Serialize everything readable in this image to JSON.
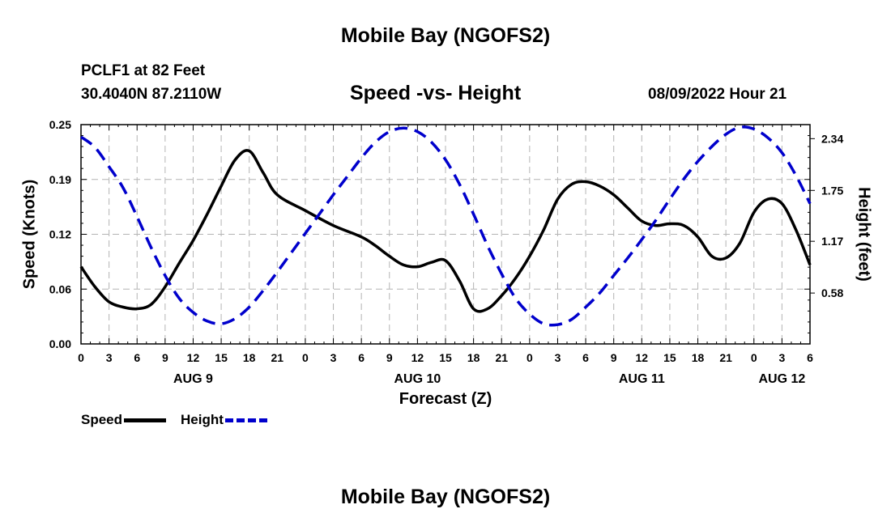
{
  "page": {
    "title": "Mobile Bay (NGOFS2)",
    "footer_title": "Mobile Bay (NGOFS2)",
    "station": "PCLF1 at 82 Feet",
    "coordinates": "30.4040N  87.2110W",
    "subtitle": "Speed -vs- Height",
    "timestamp": "08/09/2022 Hour 21"
  },
  "legend": {
    "speed_label": "Speed",
    "height_label": "Height"
  },
  "chart_data": {
    "type": "line",
    "title": "Speed -vs- Height",
    "xlabel": "Forecast (Z)",
    "ylabel": "Speed (Knots)",
    "y2label": "Height (feet)",
    "xlim": [
      0,
      78
    ],
    "ylim": [
      0,
      0.25
    ],
    "y2lim": [
      0.0,
      2.5
    ],
    "x_tick_step_hours": 3,
    "x_tick_labels": [
      "0",
      "3",
      "6",
      "9",
      "12",
      "15",
      "18",
      "21",
      "0",
      "3",
      "6",
      "9",
      "12",
      "15",
      "18",
      "21",
      "0",
      "3",
      "6",
      "9",
      "12",
      "15",
      "18",
      "21",
      "0",
      "3",
      "6"
    ],
    "x_date_labels": [
      {
        "label": "AUG 9",
        "x": 12
      },
      {
        "label": "AUG 10",
        "x": 36
      },
      {
        "label": "AUG 11",
        "x": 60
      },
      {
        "label": "AUG 12",
        "x": 75
      }
    ],
    "y_ticks": [
      "0.00",
      "0.06",
      "0.12",
      "0.19",
      "0.25"
    ],
    "y2_ticks": [
      "0.58",
      "1.17",
      "1.75",
      "2.34"
    ],
    "grid": true,
    "legend_position": "bottom-left",
    "colors": {
      "speed": "#000000",
      "height": "#0000cc",
      "grid": "#b4b4b4"
    },
    "series": [
      {
        "name": "Speed",
        "axis": "left",
        "style": "solid",
        "x": [
          0,
          1.5,
          3,
          4.5,
          6,
          7.5,
          9,
          10.5,
          12,
          13.5,
          15,
          16.5,
          18,
          19.5,
          21,
          24,
          27,
          30,
          31.5,
          33,
          34.5,
          36,
          37.5,
          39,
          40.5,
          42,
          43.5,
          45,
          46.5,
          48,
          49.5,
          51,
          52.5,
          54,
          55.5,
          57,
          58.5,
          60,
          61.5,
          63,
          64.5,
          66,
          67.5,
          69,
          70.5,
          72,
          73.5,
          75,
          76.5,
          78
        ],
        "y": [
          0.088,
          0.065,
          0.048,
          0.042,
          0.04,
          0.045,
          0.065,
          0.092,
          0.118,
          0.148,
          0.18,
          0.21,
          0.22,
          0.195,
          0.17,
          0.152,
          0.135,
          0.122,
          0.112,
          0.1,
          0.09,
          0.088,
          0.093,
          0.095,
          0.072,
          0.04,
          0.04,
          0.055,
          0.075,
          0.1,
          0.13,
          0.165,
          0.182,
          0.185,
          0.18,
          0.17,
          0.155,
          0.14,
          0.135,
          0.137,
          0.135,
          0.122,
          0.1,
          0.098,
          0.115,
          0.15,
          0.165,
          0.16,
          0.13,
          0.09
        ]
      },
      {
        "name": "Height",
        "axis": "right",
        "style": "dashed",
        "x": [
          0,
          1.5,
          3,
          4.5,
          6,
          7.5,
          9,
          10.5,
          12,
          13.5,
          15,
          16.5,
          18,
          19.5,
          21,
          22.5,
          24,
          25.5,
          27,
          28.5,
          30,
          31.5,
          33,
          34.5,
          36,
          37.5,
          39,
          40.5,
          42,
          43.5,
          45,
          46.5,
          48,
          49.5,
          51,
          52.5,
          54,
          55.5,
          57,
          58.5,
          60,
          61.5,
          63,
          64.5,
          66,
          67.5,
          69,
          70.5,
          72,
          73.5,
          75,
          76.5,
          78
        ],
        "y": [
          2.36,
          2.24,
          2.02,
          1.78,
          1.45,
          1.1,
          0.78,
          0.52,
          0.36,
          0.26,
          0.23,
          0.29,
          0.42,
          0.61,
          0.82,
          1.04,
          1.26,
          1.48,
          1.7,
          1.91,
          2.12,
          2.3,
          2.42,
          2.46,
          2.42,
          2.3,
          2.1,
          1.82,
          1.48,
          1.12,
          0.8,
          0.52,
          0.34,
          0.23,
          0.22,
          0.28,
          0.42,
          0.58,
          0.78,
          0.98,
          1.19,
          1.41,
          1.65,
          1.88,
          2.08,
          2.25,
          2.39,
          2.47,
          2.45,
          2.35,
          2.18,
          1.92,
          1.6
        ]
      }
    ]
  }
}
